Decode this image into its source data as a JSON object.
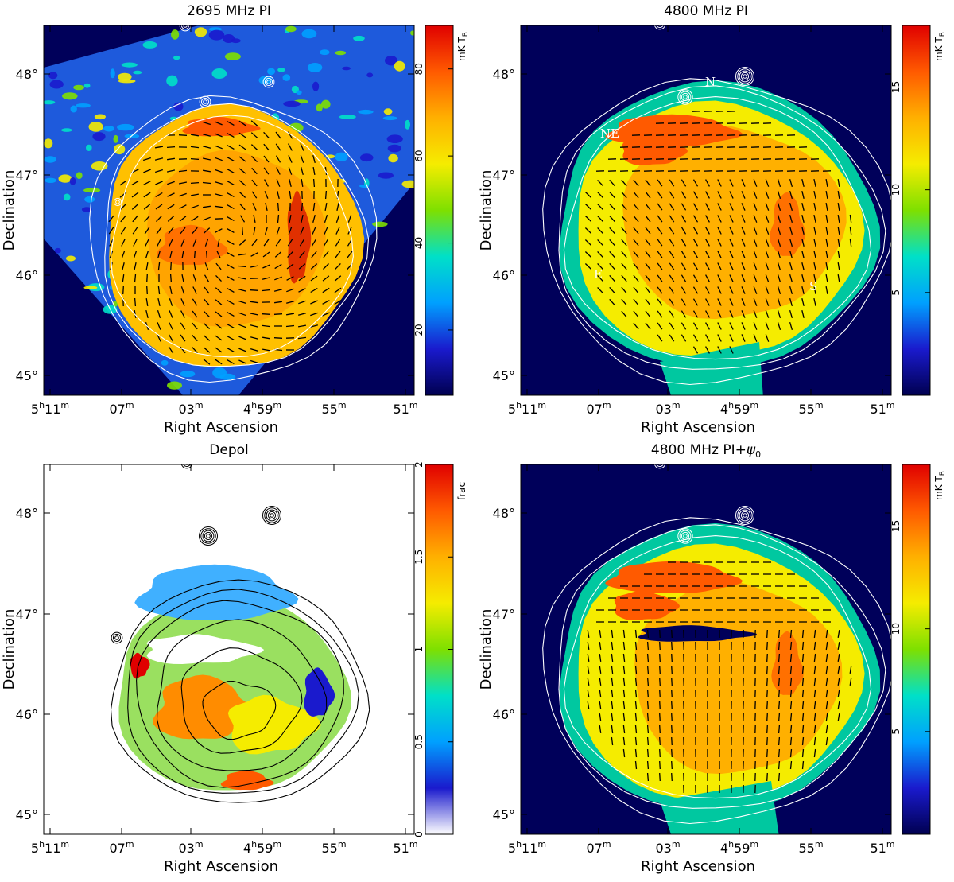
{
  "figure": {
    "colors": {
      "map_background": "#00005a",
      "contour_white": "#ffffff",
      "contour_black": "#000000",
      "vector_color": "#000000"
    },
    "colormap": [
      "#ffffff",
      "#1a1acd",
      "#00a0ff",
      "#00e0c8",
      "#7ee000",
      "#f5ec00",
      "#ffb000",
      "#ff5a00",
      "#e00000"
    ],
    "colormap_dark": [
      "#000050",
      "#1a1acd",
      "#00a0ff",
      "#00e0c8",
      "#7ee000",
      "#f5ec00",
      "#ffb000",
      "#ff5a00",
      "#e00000"
    ]
  },
  "chart_data": [
    {
      "id": "pi2695",
      "type": "heatmap",
      "title": "2695 MHz PI",
      "xlabel": "Right Ascension",
      "ylabel": "Declination",
      "ra_ticks": [
        {
          "h": "5",
          "m": "11"
        },
        {
          "h": "",
          "m": "07"
        },
        {
          "h": "",
          "m": "03"
        },
        {
          "h": "4",
          "m": "59"
        },
        {
          "h": "",
          "m": "55"
        },
        {
          "h": "",
          "m": "51"
        }
      ],
      "dec_ticks": [
        "45°",
        "46°",
        "47°",
        "48°"
      ],
      "colorbar": {
        "unit": "mK T",
        "unit_sub": "B",
        "range": [
          5,
          90
        ],
        "ticks": [
          "20",
          "40",
          "60",
          "80"
        ],
        "tick_values": [
          20,
          40,
          60,
          80
        ]
      },
      "annotations": [],
      "contour_color": "white"
    },
    {
      "id": "pi4800",
      "type": "heatmap",
      "title": "4800 MHz PI",
      "xlabel": "Right Ascension",
      "ylabel": "Declination",
      "ra_ticks": [
        {
          "h": "5",
          "m": "11"
        },
        {
          "h": "",
          "m": "07"
        },
        {
          "h": "",
          "m": "03"
        },
        {
          "h": "4",
          "m": "59"
        },
        {
          "h": "",
          "m": "55"
        },
        {
          "h": "",
          "m": "51"
        }
      ],
      "dec_ticks": [
        "45°",
        "46°",
        "47°",
        "48°"
      ],
      "colorbar": {
        "unit": "mK T",
        "unit_sub": "B",
        "range": [
          0,
          18
        ],
        "ticks": [
          "5",
          "10",
          "15"
        ],
        "tick_values": [
          5,
          10,
          15
        ]
      },
      "annotations": [
        "N",
        "NE",
        "E",
        "S"
      ],
      "contour_color": "white"
    },
    {
      "id": "depol",
      "type": "heatmap",
      "title": "Depol",
      "xlabel": "Right Ascension",
      "ylabel": "Declination",
      "ra_ticks": [
        {
          "h": "5",
          "m": "11"
        },
        {
          "h": "",
          "m": "07"
        },
        {
          "h": "",
          "m": "03"
        },
        {
          "h": "4",
          "m": "59"
        },
        {
          "h": "",
          "m": "55"
        },
        {
          "h": "",
          "m": "51"
        }
      ],
      "dec_ticks": [
        "45°",
        "46°",
        "47°",
        "48°"
      ],
      "colorbar": {
        "unit": "frac",
        "unit_sub": "",
        "range": [
          0,
          2
        ],
        "ticks": [
          "0",
          "0.5",
          "1",
          "1.5",
          "2"
        ],
        "tick_values": [
          0,
          0.5,
          1,
          1.5,
          2
        ]
      },
      "annotations": [],
      "contour_color": "black"
    },
    {
      "id": "pi4800psi",
      "type": "heatmap",
      "title": "4800 MHz PI+",
      "title_symbol": "ψ",
      "title_symbol_sub": "0",
      "xlabel": "Right Ascension",
      "ylabel": "Declination",
      "ra_ticks": [
        {
          "h": "5",
          "m": "11"
        },
        {
          "h": "",
          "m": "07"
        },
        {
          "h": "",
          "m": "03"
        },
        {
          "h": "4",
          "m": "59"
        },
        {
          "h": "",
          "m": "55"
        },
        {
          "h": "",
          "m": "51"
        }
      ],
      "dec_ticks": [
        "45°",
        "46°",
        "47°",
        "48°"
      ],
      "colorbar": {
        "unit": "mK T",
        "unit_sub": "B",
        "range": [
          0,
          18
        ],
        "ticks": [
          "5",
          "10",
          "15"
        ],
        "tick_values": [
          5,
          10,
          15
        ]
      },
      "annotations": [],
      "contour_color": "white"
    }
  ]
}
